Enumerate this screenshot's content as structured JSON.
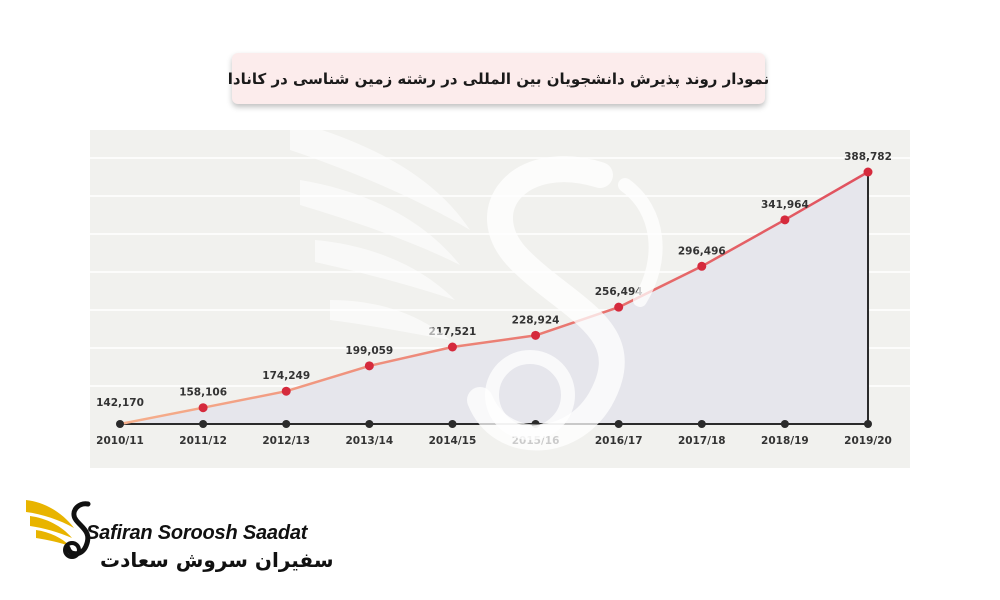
{
  "title": "نمودار روند پذیرش دانشجویان بین المللی در رشته زمین شناسی در کانادا",
  "brand": {
    "name_en": "Safiran Soroosh Saadat",
    "name_fa": "سفیران سروش سعادت",
    "logo_icon": "swan-wings-icon",
    "colors": {
      "gold": "#e8b400",
      "dark": "#111111"
    }
  },
  "colors": {
    "panel": "#f1f1ee",
    "area": "#e6e6ec",
    "line_start": "#f6b08c",
    "line_end": "#e0505e",
    "marker_red": "#d52a3c",
    "marker_dark": "#2b2b2b",
    "baseline": "#2b2b2b"
  },
  "chart_data": {
    "type": "area",
    "title": "نمودار روند پذیرش دانشجویان بین المللی در رشته زمین شناسی در کانادا",
    "categories": [
      "2010/11",
      "2011/12",
      "2012/13",
      "2013/14",
      "2014/15",
      "2015/16",
      "2016/17",
      "2017/18",
      "2018/19",
      "2019/20"
    ],
    "series": [
      {
        "values": [
          142170,
          158106,
          174249,
          199059,
          217521,
          228924,
          256494,
          296496,
          341964,
          388782
        ],
        "labels": [
          "142,170",
          "158,106",
          "174,249",
          "199,059",
          "217,521",
          "228,924",
          "256,494",
          "296,496",
          "341,964",
          "388,782"
        ]
      }
    ],
    "xlabel": "",
    "ylabel": "",
    "ylim": [
      142170,
      388782
    ],
    "grid": true,
    "legend": "none"
  }
}
